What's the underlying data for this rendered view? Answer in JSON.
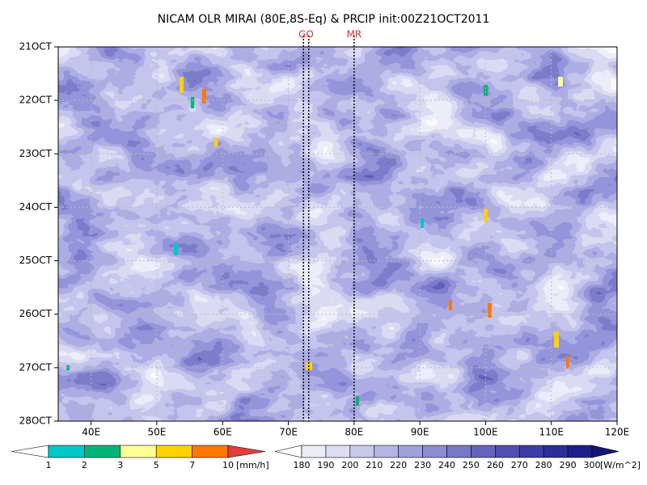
{
  "chart_data": {
    "type": "heatmap",
    "title": "NICAM OLR MIRAI (80E,8S-Eq) & PRCIP init:00Z21OCT2011",
    "xlim": [
      35,
      120
    ],
    "xticks": [
      {
        "value": 40,
        "label": "40E"
      },
      {
        "value": 50,
        "label": "50E"
      },
      {
        "value": 60,
        "label": "60E"
      },
      {
        "value": 70,
        "label": "70E"
      },
      {
        "value": 80,
        "label": "80E"
      },
      {
        "value": 90,
        "label": "90E"
      },
      {
        "value": 100,
        "label": "100E"
      },
      {
        "value": 110,
        "label": "110E"
      },
      {
        "value": 120,
        "label": "120E"
      }
    ],
    "ylim": [
      21,
      28
    ],
    "yticks": [
      {
        "value": 21,
        "label": "21OCT"
      },
      {
        "value": 22,
        "label": "22OCT"
      },
      {
        "value": 23,
        "label": "23OCT"
      },
      {
        "value": 24,
        "label": "24OCT"
      },
      {
        "value": 25,
        "label": "25OCT"
      },
      {
        "value": 26,
        "label": "26OCT"
      },
      {
        "value": 27,
        "label": "27OCT"
      },
      {
        "value": 28,
        "label": "28OCT"
      }
    ],
    "grid": true,
    "annotations": [
      {
        "label": "GO",
        "x": [
          72.3,
          73.1
        ]
      },
      {
        "label": "MR",
        "x": [
          80
        ]
      }
    ],
    "colorbars": [
      {
        "levels": [
          1,
          2,
          3,
          5,
          7,
          10
        ],
        "unit": "[mm/h]",
        "colors": [
          "#ffffff",
          "#00c8c8",
          "#00b478",
          "#ffff96",
          "#ffd200",
          "#ff7800",
          "#e63c3c"
        ]
      },
      {
        "levels": [
          180,
          190,
          200,
          210,
          220,
          230,
          240,
          250,
          260,
          270,
          280,
          290,
          300
        ],
        "unit": "[W/m^2]",
        "colors": [
          "#ffffff",
          "#ececf8",
          "#dcdcf2",
          "#c8c8ea",
          "#b4b4e2",
          "#a0a0da",
          "#8c8cd2",
          "#7878c8",
          "#6464be",
          "#5050b4",
          "#3c3ca8",
          "#2d2d9a",
          "#1e1e8a",
          "#14147a"
        ]
      }
    ]
  }
}
